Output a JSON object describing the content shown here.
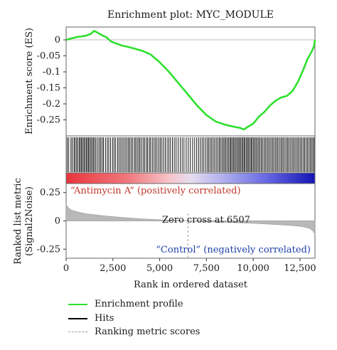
{
  "chart_data": {
    "type": "line",
    "title": "Enrichment plot: MYC_MODULE",
    "top_panel": {
      "ylabel": "Enrichment score (ES)",
      "ylim": [
        -0.3,
        0.04
      ],
      "yticks": [
        "0",
        "-0.05",
        "-0.1",
        "-0.15",
        "-0.2",
        "-0.25"
      ],
      "ytick_values": [
        0,
        -0.05,
        -0.1,
        -0.15,
        -0.2,
        -0.25
      ],
      "series": [
        {
          "name": "Enrichment profile",
          "color": "#2ee02e",
          "x": [
            0,
            300,
            700,
            1000,
            1300,
            1500,
            1700,
            1900,
            2150,
            2400,
            2700,
            3000,
            3300,
            3700,
            4100,
            4500,
            5000,
            5500,
            6000,
            6500,
            7000,
            7500,
            8000,
            8500,
            9000,
            9300,
            9500,
            9700,
            10000,
            10300,
            10600,
            10900,
            11200,
            11500,
            11800,
            12100,
            12400,
            12700,
            12900,
            13100,
            13250,
            13300
          ],
          "values": [
            0.0,
            0.005,
            0.01,
            0.012,
            0.018,
            0.028,
            0.022,
            0.015,
            0.008,
            -0.005,
            -0.012,
            -0.018,
            -0.022,
            -0.028,
            -0.035,
            -0.045,
            -0.07,
            -0.1,
            -0.135,
            -0.17,
            -0.205,
            -0.235,
            -0.255,
            -0.265,
            -0.272,
            -0.275,
            -0.28,
            -0.272,
            -0.262,
            -0.24,
            -0.225,
            -0.205,
            -0.19,
            -0.18,
            -0.175,
            -0.16,
            -0.13,
            -0.09,
            -0.06,
            -0.04,
            -0.02,
            0.0
          ]
        }
      ]
    },
    "hits": {
      "name": "Hits",
      "color": "#000000",
      "x": [
        60,
        140,
        260,
        330,
        420,
        480,
        560,
        620,
        700,
        760,
        820,
        880,
        950,
        1010,
        1080,
        1140,
        1200,
        1260,
        1330,
        1400,
        1460,
        1530,
        1600,
        1700,
        1780,
        1850,
        1930,
        2000,
        2100,
        2200,
        2280,
        2380,
        2480,
        2560,
        2650,
        2750,
        2830,
        2920,
        3000,
        3080,
        3160,
        3250,
        3330,
        3400,
        3480,
        3560,
        3650,
        3720,
        3800,
        3880,
        3950,
        4030,
        4120,
        4200,
        4290,
        4360,
        4450,
        4520,
        4610,
        4700,
        4780,
        4860,
        4950,
        5030,
        5120,
        5210,
        5300,
        5400,
        5490,
        5580,
        5680,
        5780,
        5880,
        5990,
        6100,
        6200,
        6300,
        6420,
        6530,
        6640,
        6760,
        6870,
        6980,
        7080,
        7180,
        7270,
        7360,
        7450,
        7540,
        7620,
        7700,
        7780,
        7860,
        7940,
        8020,
        8100,
        8180,
        8250,
        8330,
        8400,
        8470,
        8540,
        8610,
        8680,
        8750,
        8810,
        8870,
        8940,
        9000,
        9070,
        9130,
        9200,
        9260,
        9320,
        9390,
        9450,
        9510,
        9570,
        9640,
        9700,
        9760,
        9830,
        9890,
        9950,
        10020,
        10080,
        10150,
        10220,
        10290,
        10360,
        10430,
        10500,
        10580,
        10650,
        10730,
        10800,
        10880,
        10950,
        11030,
        11100,
        11180,
        11250,
        11320,
        11400,
        11480,
        11550,
        11620,
        11700,
        11780,
        11850,
        11920,
        12000,
        12080,
        12150,
        12230,
        12300,
        12380,
        12450,
        12530,
        12600,
        12680,
        12750,
        12830,
        12900,
        12980,
        13050,
        13120,
        13190,
        13260
      ]
    },
    "heatmap_labels": {
      "positive": "“Antimycin A” (positively correlated)",
      "negative": "“Control” (negatively correlated)"
    },
    "bottom_panel": {
      "ylabel_line1": "Ranked list metric",
      "ylabel_line2": "(Signal2Noise)",
      "ylim": [
        -0.33,
        0.33
      ],
      "yticks": [
        "0.25",
        "0",
        "-0.25"
      ],
      "ytick_values": [
        0.25,
        0,
        -0.25
      ],
      "annotation": "Zero cross at 6507",
      "zero_cross": 6507,
      "series": [
        {
          "name": "Ranking metric scores",
          "color": "#999999",
          "x": [
            0,
            50,
            150,
            300,
            600,
            1000,
            1500,
            2000,
            3000,
            4000,
            5000,
            6000,
            6507,
            7000,
            8000,
            9000,
            10000,
            11000,
            12000,
            12600,
            13000,
            13200,
            13300
          ],
          "values": [
            0.16,
            0.13,
            0.11,
            0.095,
            0.08,
            0.065,
            0.055,
            0.045,
            0.03,
            0.018,
            0.01,
            0.004,
            0.0,
            -0.004,
            -0.01,
            -0.016,
            -0.022,
            -0.03,
            -0.04,
            -0.05,
            -0.065,
            -0.09,
            -0.12
          ]
        }
      ]
    },
    "xaxis": {
      "xlabel": "Rank in ordered dataset",
      "xlim": [
        0,
        13300
      ],
      "xticks": [
        "0",
        "2,500",
        "5,000",
        "7,500",
        "10,000",
        "12,500"
      ],
      "xtick_values": [
        0,
        2500,
        5000,
        7500,
        10000,
        12500
      ]
    },
    "legend": {
      "placement": "bottom-left",
      "entries": [
        {
          "label": "Enrichment profile",
          "color": "#2ee02e",
          "style": "solid"
        },
        {
          "label": "Hits",
          "color": "#000000",
          "style": "solid"
        },
        {
          "label": "Ranking metric scores",
          "color": "#999999",
          "style": "dashed"
        }
      ]
    },
    "grid": false
  }
}
